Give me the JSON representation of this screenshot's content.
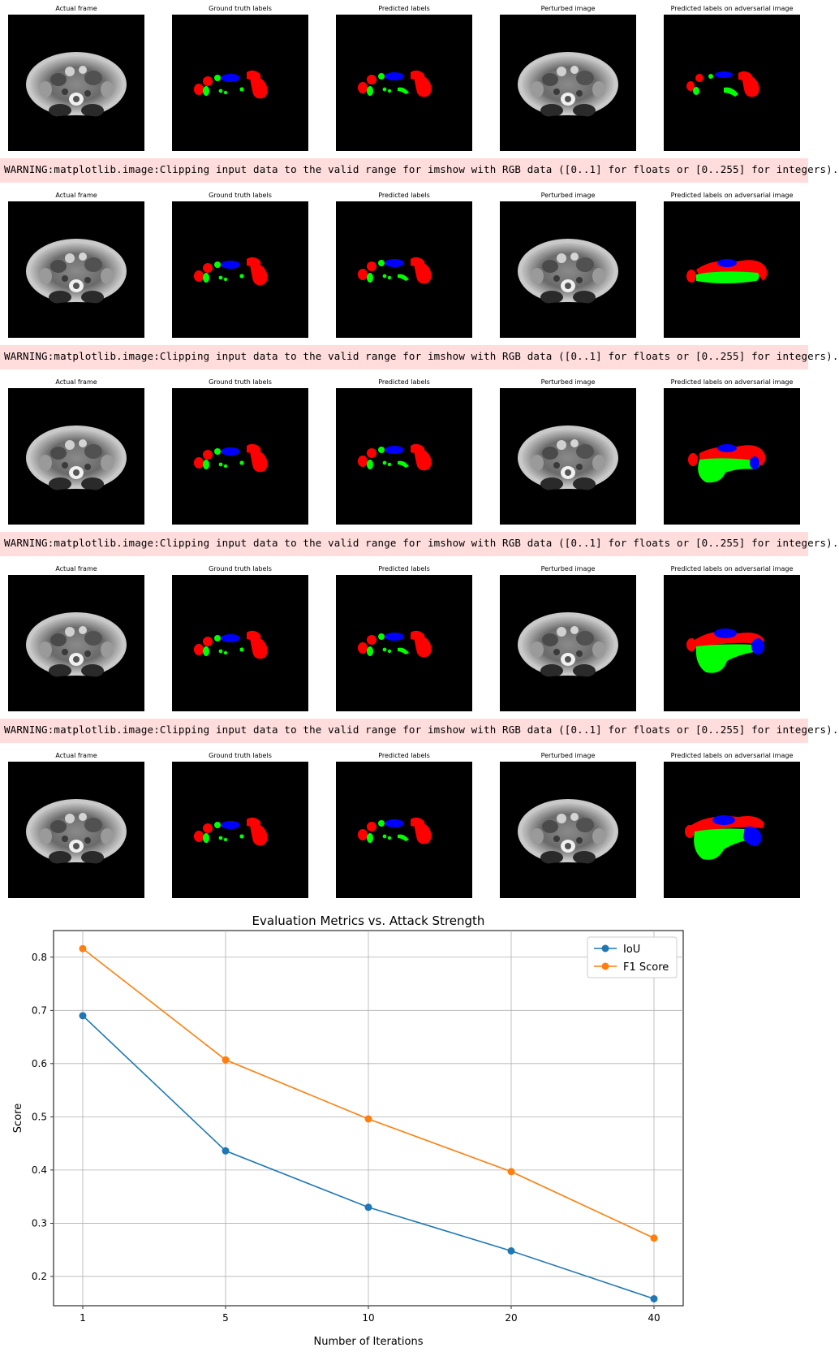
{
  "panel_titles": [
    "Actual frame",
    "Ground truth labels",
    "Predicted labels",
    "Perturbed image",
    "Predicted labels on adversarial image"
  ],
  "warning_text": "WARNING:matplotlib.image:Clipping input data to the valid range for imshow with RGB data ([0..1] for floats or [0..255] for integers).",
  "colors": {
    "label_red": "#ff0000",
    "label_green": "#00ff00",
    "label_blue": "#0000ff",
    "warning_bg": "#ffdddd",
    "iou": "#1f77b4",
    "f1": "#ff7f0e"
  },
  "chart_data": {
    "type": "line",
    "title": "Evaluation Metrics vs. Attack Strength",
    "xlabel": "Number of Iterations",
    "ylabel": "Score",
    "categories": [
      "1",
      "5",
      "10",
      "20",
      "40"
    ],
    "series": [
      {
        "name": "IoU",
        "values": [
          0.69,
          0.436,
          0.33,
          0.248,
          0.158
        ]
      },
      {
        "name": "F1 Score",
        "values": [
          0.816,
          0.607,
          0.496,
          0.397,
          0.272
        ]
      }
    ],
    "ylim": [
      0.145,
      0.85
    ],
    "yticks": [
      0.2,
      0.3,
      0.4,
      0.5,
      0.6,
      0.7,
      0.8
    ],
    "grid": true,
    "legend": "top-right",
    "marker": "circle"
  }
}
